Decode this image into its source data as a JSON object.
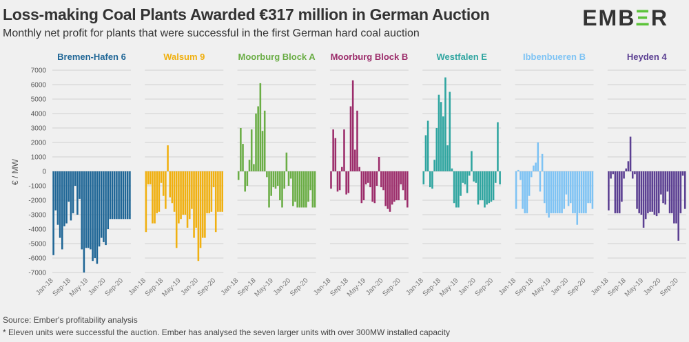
{
  "header": {
    "title": "Loss-making Coal Plants Awarded €317 million in German Auction",
    "subtitle": "Monthly net profit for plants that were successful in the first German hard coal auction",
    "logo_main": "EMB",
    "logo_accent": "Ξ",
    "logo_end": "R"
  },
  "footer": {
    "source": "Source: Ember's profitability analysis",
    "note": "* Eleven units were successful the auction. Ember has analysed the seven larger units with over 300MW installed capacity"
  },
  "chart_data": {
    "type": "bar",
    "title": "Loss-making Coal Plants Awarded €317 million in German Auction",
    "ylabel": "€ / MW",
    "xlabel": "",
    "ylim": [
      -7000,
      7000
    ],
    "yticks": [
      7000,
      6000,
      5000,
      4000,
      3000,
      2000,
      1000,
      0,
      -1000,
      -2000,
      -3000,
      -4000,
      -5000,
      -6000,
      -7000
    ],
    "xtick_labels": [
      "Jan-18",
      "Sep-18",
      "May-19",
      "Jan-20",
      "Sep-20"
    ],
    "xtick_indices": [
      0,
      8,
      16,
      24,
      32
    ],
    "grid": true,
    "months": 36,
    "series": [
      {
        "name": "Bremen-Hafen 6",
        "color": "#1f6696",
        "values": [
          -5800,
          -2700,
          -3700,
          -4600,
          -5400,
          -3800,
          -3600,
          -2100,
          -3400,
          -2900,
          -1000,
          -3000,
          -1900,
          -5400,
          -7000,
          -5300,
          -5300,
          -5400,
          -6200,
          -6000,
          -6400,
          -5200,
          -4600,
          -4900,
          -5100,
          -4000,
          -3300,
          -3300,
          -3300,
          -3300,
          -3300,
          -3300,
          -3300,
          -3300,
          -3300,
          -3300
        ]
      },
      {
        "name": "Walsum 9",
        "color": "#f0b010",
        "values": [
          -4200,
          -900,
          -900,
          -3600,
          -3600,
          -2900,
          -2800,
          -800,
          -1700,
          -2600,
          1800,
          -1800,
          -2200,
          -2800,
          -5300,
          -3600,
          -3300,
          -3000,
          -3000,
          -3900,
          -3300,
          -2600,
          -4600,
          -3900,
          -6200,
          -5300,
          -4600,
          -4600,
          -2900,
          -2900,
          -2800,
          -1100,
          -4200,
          -2800,
          -2800,
          -2800
        ]
      },
      {
        "name": "Moorburg Block A",
        "color": "#6aad45",
        "values": [
          -600,
          3000,
          1900,
          -1400,
          -1000,
          800,
          2900,
          500,
          4000,
          4500,
          6100,
          2800,
          4200,
          -400,
          -2500,
          -1700,
          -1100,
          -1200,
          -1000,
          -2000,
          -2500,
          -1200,
          1300,
          -1000,
          -500,
          -2400,
          -2100,
          -2500,
          -2500,
          -2500,
          -2500,
          -2500,
          -2100,
          -1300,
          -2500,
          -2500
        ]
      },
      {
        "name": "Moorburg Block B",
        "color": "#9c2d6b",
        "values": [
          -1200,
          2900,
          2300,
          -1400,
          -1300,
          300,
          2900,
          -1600,
          -1500,
          4500,
          6300,
          1500,
          4200,
          300,
          -2200,
          -2000,
          -900,
          -800,
          -1100,
          -2100,
          -2200,
          -1000,
          1000,
          -1100,
          -1300,
          -2400,
          -2600,
          -2800,
          -2300,
          -2100,
          -2000,
          -2000,
          -900,
          -1300,
          -2000,
          -2500
        ]
      },
      {
        "name": "Westfalen E",
        "color": "#2fa5a0",
        "values": [
          -900,
          2500,
          3500,
          -1100,
          -1200,
          800,
          3000,
          5300,
          4800,
          3800,
          6500,
          1800,
          5500,
          200,
          -2200,
          -2500,
          -2500,
          -1700,
          -800,
          -900,
          -1500,
          -300,
          1400,
          -700,
          -800,
          -2300,
          -2000,
          -2000,
          -2500,
          -2300,
          -2200,
          -2100,
          -2000,
          -800,
          3400,
          -900
        ]
      },
      {
        "name": "Ibbenbueren B",
        "color": "#7ec3f4",
        "values": [
          -2600,
          100,
          -600,
          -2600,
          -2900,
          -2900,
          -1700,
          -400,
          400,
          600,
          2000,
          -1400,
          1200,
          -2200,
          -2900,
          -3200,
          -2900,
          -2900,
          -2900,
          -2900,
          -2900,
          -2900,
          -2600,
          -1600,
          -2400,
          -2200,
          -2900,
          -2900,
          -3700,
          -2900,
          -2900,
          -2900,
          -2900,
          -2200,
          -2200,
          -2600
        ]
      },
      {
        "name": "Heyden 4",
        "color": "#5b3f92",
        "values": [
          -2700,
          -500,
          -200,
          -2900,
          -2900,
          -2900,
          -2100,
          -500,
          200,
          700,
          2400,
          -500,
          -200,
          -2600,
          -2900,
          -3000,
          -3900,
          -3300,
          -2900,
          -2800,
          -2800,
          -3000,
          -3100,
          -2900,
          -1600,
          -2200,
          -2300,
          -1400,
          -2900,
          -2900,
          -3600,
          -3600,
          -4800,
          -2900,
          -300,
          -2600
        ]
      }
    ]
  }
}
